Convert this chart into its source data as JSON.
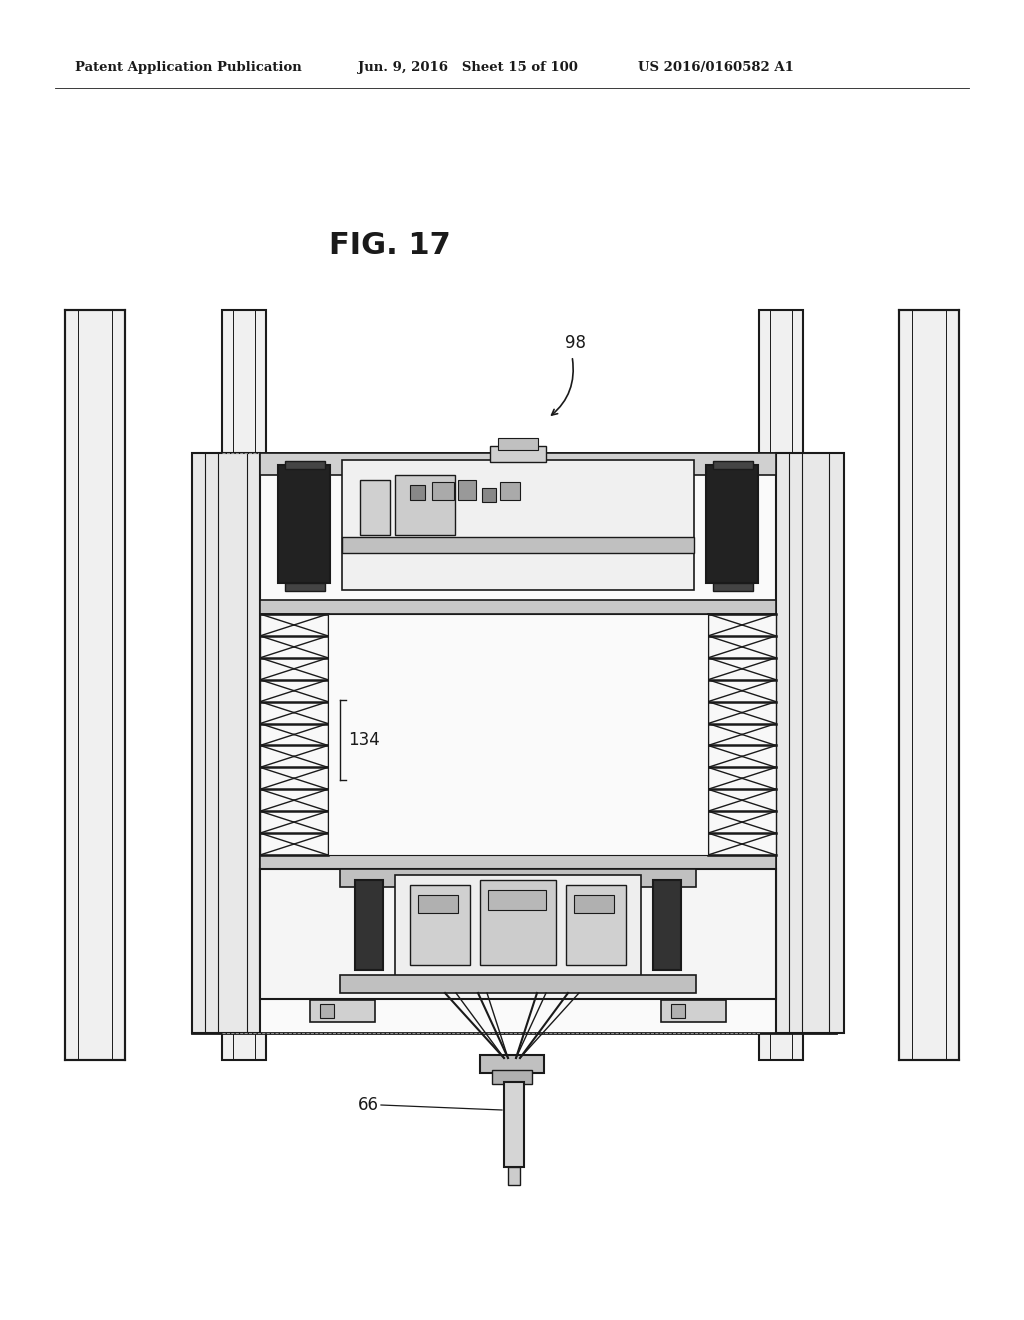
{
  "bg_color": "#ffffff",
  "header_left": "Patent Application Publication",
  "header_mid": "Jun. 9, 2016   Sheet 15 of 100",
  "header_right": "US 2016/0160582 A1",
  "fig_label": "FIG. 17",
  "ref_98": "98",
  "ref_134": "134",
  "ref_66": "66",
  "lc": "#1a1a1a",
  "lc_light": "#888888",
  "fill_vlight": "#f5f5f5",
  "fill_light": "#e8e8e8",
  "fill_mid": "#cccccc",
  "fill_dark": "#555555",
  "fill_black": "#1a1a1a"
}
